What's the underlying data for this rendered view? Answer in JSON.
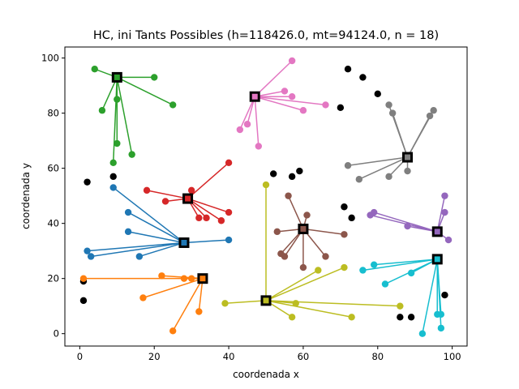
{
  "chart_data": {
    "type": "scatter",
    "title": "HC, ini Tants Possibles (h=118426.0, mt=94124.0, n = 18)",
    "xlabel": "coordenada x",
    "ylabel": "coordenada y",
    "xlim": [
      -4,
      104
    ],
    "ylim": [
      -4.5,
      104
    ],
    "xticks": [
      0,
      20,
      40,
      60,
      80,
      100
    ],
    "yticks": [
      0,
      20,
      40,
      60,
      80,
      100
    ],
    "xtick_labels": [
      "0",
      "20",
      "40",
      "60",
      "80",
      "100"
    ],
    "ytick_labels": [
      "0",
      "20",
      "40",
      "60",
      "80",
      "100"
    ],
    "grid": false,
    "unassigned_points": [
      [
        2,
        55
      ],
      [
        9,
        57
      ],
      [
        1,
        19
      ],
      [
        1,
        12
      ],
      [
        52,
        58
      ],
      [
        57,
        57
      ],
      [
        59,
        59
      ],
      [
        70,
        82
      ],
      [
        72,
        96
      ],
      [
        76,
        93
      ],
      [
        80,
        87
      ],
      [
        71,
        46
      ],
      [
        73,
        42
      ],
      [
        86,
        6
      ],
      [
        89,
        6
      ],
      [
        98,
        14
      ]
    ],
    "clusters": [
      {
        "color": "#2ca02c",
        "center": [
          10,
          93
        ],
        "points": [
          [
            4,
            96
          ],
          [
            20,
            93
          ],
          [
            25,
            83
          ],
          [
            6,
            81
          ],
          [
            10,
            85
          ],
          [
            10,
            69
          ],
          [
            9,
            62
          ],
          [
            14,
            65
          ]
        ]
      },
      {
        "color": "#e377c2",
        "center": [
          47,
          86
        ],
        "points": [
          [
            57,
            99
          ],
          [
            55,
            88
          ],
          [
            57,
            86
          ],
          [
            60,
            81
          ],
          [
            66,
            83
          ],
          [
            45,
            76
          ],
          [
            43,
            74
          ],
          [
            48,
            68
          ]
        ]
      },
      {
        "color": "#7f7f7f",
        "center": [
          88,
          64
        ],
        "points": [
          [
            83,
            83
          ],
          [
            84,
            80
          ],
          [
            95,
            81
          ],
          [
            94,
            79
          ],
          [
            72,
            61
          ],
          [
            75,
            56
          ],
          [
            83,
            57
          ],
          [
            88,
            59
          ]
        ]
      },
      {
        "color": "#d62728",
        "center": [
          29,
          49
        ],
        "points": [
          [
            40,
            62
          ],
          [
            30,
            52
          ],
          [
            18,
            52
          ],
          [
            23,
            48
          ],
          [
            32,
            42
          ],
          [
            34,
            42
          ],
          [
            38,
            41
          ],
          [
            40,
            44
          ]
        ]
      },
      {
        "color": "#1f77b4",
        "center": [
          28,
          33
        ],
        "points": [
          [
            9,
            53
          ],
          [
            13,
            44
          ],
          [
            13,
            37
          ],
          [
            40,
            34
          ],
          [
            2,
            30
          ],
          [
            3,
            28
          ],
          [
            16,
            28
          ]
        ]
      },
      {
        "color": "#8c564b",
        "center": [
          60,
          38
        ],
        "points": [
          [
            56,
            50
          ],
          [
            61,
            43
          ],
          [
            53,
            37
          ],
          [
            71,
            36
          ],
          [
            54,
            29
          ],
          [
            55,
            28
          ],
          [
            66,
            28
          ],
          [
            60,
            24
          ]
        ]
      },
      {
        "color": "#9467bd",
        "center": [
          96,
          37
        ],
        "points": [
          [
            98,
            50
          ],
          [
            98,
            44
          ],
          [
            79,
            44
          ],
          [
            78,
            43
          ],
          [
            88,
            39
          ],
          [
            99,
            34
          ]
        ]
      },
      {
        "color": "#ff7f0e",
        "center": [
          33,
          20
        ],
        "points": [
          [
            1,
            20
          ],
          [
            22,
            21
          ],
          [
            28,
            20
          ],
          [
            30,
            20
          ],
          [
            17,
            13
          ],
          [
            32,
            8
          ],
          [
            25,
            1
          ]
        ]
      },
      {
        "color": "#17becf",
        "center": [
          96,
          27
        ],
        "points": [
          [
            79,
            25
          ],
          [
            76,
            23
          ],
          [
            82,
            18
          ],
          [
            89,
            22
          ],
          [
            96,
            7
          ],
          [
            97,
            7
          ],
          [
            97,
            2
          ],
          [
            92,
            0
          ]
        ]
      },
      {
        "color": "#bcbd22",
        "center": [
          50,
          12
        ],
        "points": [
          [
            50,
            54
          ],
          [
            64,
            23
          ],
          [
            71,
            24
          ],
          [
            39,
            11
          ],
          [
            58,
            11
          ],
          [
            86,
            10
          ],
          [
            57,
            6
          ],
          [
            73,
            6
          ]
        ]
      }
    ]
  }
}
